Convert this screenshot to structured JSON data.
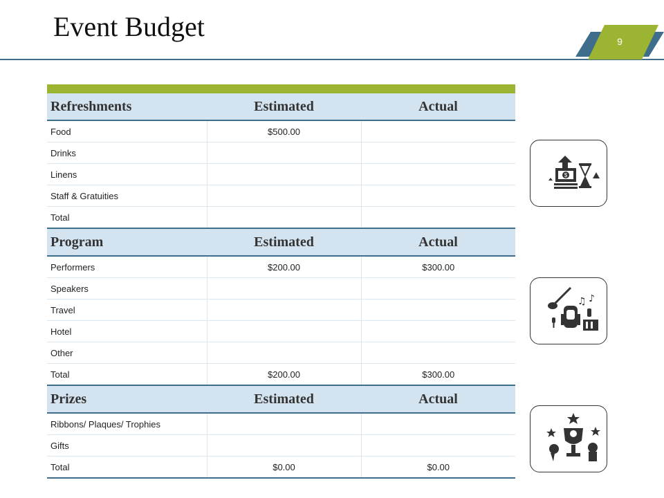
{
  "slide": {
    "title": "Event Budget",
    "page_number": "9"
  },
  "colors": {
    "accent_green": "#9bb533",
    "accent_blue": "#3f6e8c",
    "header_fill": "#d3e3ef"
  },
  "icons": [
    "money-time-icon",
    "music-travel-icon",
    "trophy-awards-icon"
  ],
  "sections": [
    {
      "name": "Refreshments",
      "estimated_label": "Estimated",
      "actual_label": "Actual",
      "rows": [
        {
          "item": "Food",
          "estimated": "$500.00",
          "actual": ""
        },
        {
          "item": "Drinks",
          "estimated": "",
          "actual": ""
        },
        {
          "item": "Linens",
          "estimated": "",
          "actual": ""
        },
        {
          "item": "Staff & Gratuities",
          "estimated": "",
          "actual": ""
        },
        {
          "item": "Total",
          "estimated": "",
          "actual": ""
        }
      ]
    },
    {
      "name": "Program",
      "estimated_label": "Estimated",
      "actual_label": "Actual",
      "rows": [
        {
          "item": "Performers",
          "estimated": "$200.00",
          "actual": "$300.00"
        },
        {
          "item": "Speakers",
          "estimated": "",
          "actual": ""
        },
        {
          "item": "Travel",
          "estimated": "",
          "actual": ""
        },
        {
          "item": "Hotel",
          "estimated": "",
          "actual": ""
        },
        {
          "item": "Other",
          "estimated": "",
          "actual": ""
        },
        {
          "item": "Total",
          "estimated": "$200.00",
          "actual": "$300.00"
        }
      ]
    },
    {
      "name": "Prizes",
      "estimated_label": "Estimated",
      "actual_label": "Actual",
      "rows": [
        {
          "item": "Ribbons/ Plaques/ Trophies",
          "estimated": "",
          "actual": ""
        },
        {
          "item": "Gifts",
          "estimated": "",
          "actual": ""
        },
        {
          "item": "Total",
          "estimated": "$0.00",
          "actual": "$0.00"
        }
      ]
    }
  ]
}
